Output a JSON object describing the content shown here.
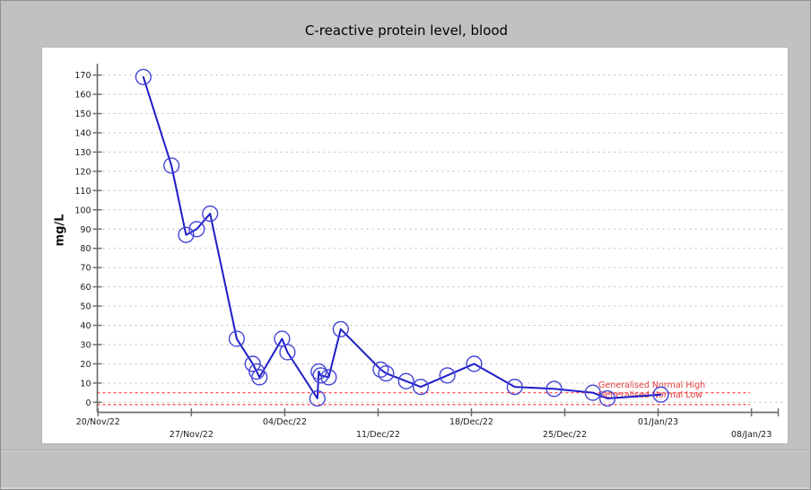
{
  "chart_data": {
    "type": "line",
    "title": "C-reactive protein level, blood",
    "ylabel": "mg/L",
    "ylim": [
      0,
      175
    ],
    "yticks": [
      0,
      10,
      20,
      30,
      40,
      50,
      60,
      70,
      80,
      90,
      100,
      110,
      120,
      130,
      140,
      150,
      160,
      170
    ],
    "grid": true,
    "legend_position": "none",
    "x_tick_labels": [
      "20/Nov/22",
      "27/Nov/22",
      "04/Dec/22",
      "11/Dec/22",
      "18/Dec/22",
      "25/Dec/22",
      "01/Jan/23",
      "08/Jan/23"
    ],
    "x_tick_day_offsets": [
      0,
      7,
      14,
      21,
      28,
      35,
      42,
      49
    ],
    "xlim_days": [
      0,
      51
    ],
    "series": [
      {
        "name": "C-reactive protein",
        "marker": "circle",
        "points": [
          {
            "date": "23/Nov/22",
            "day": 3.4,
            "value": 169
          },
          {
            "date": "25/Nov/22",
            "day": 5.5,
            "value": 123
          },
          {
            "date": "26/Nov/22",
            "day": 6.6,
            "value": 87
          },
          {
            "date": "27/Nov/22",
            "day": 7.4,
            "value": 90
          },
          {
            "date": "28/Nov/22",
            "day": 8.4,
            "value": 98
          },
          {
            "date": "30/Nov/22",
            "day": 10.4,
            "value": 33
          },
          {
            "date": "01/Dec/22",
            "day": 11.6,
            "value": 20
          },
          {
            "date": "01/Dec/22",
            "day": 11.9,
            "value": 16
          },
          {
            "date": "02/Dec/22",
            "day": 12.1,
            "value": 13
          },
          {
            "date": "03/Dec/22",
            "day": 13.8,
            "value": 33
          },
          {
            "date": "04/Dec/22",
            "day": 14.2,
            "value": 26
          },
          {
            "date": "06/Dec/22",
            "day": 16.45,
            "value": 2
          },
          {
            "date": "06/Dec/22",
            "day": 16.55,
            "value": 16
          },
          {
            "date": "06/Dec/22",
            "day": 16.7,
            "value": 14
          },
          {
            "date": "07/Dec/22",
            "day": 17.3,
            "value": 13
          },
          {
            "date": "08/Dec/22",
            "day": 18.2,
            "value": 38
          },
          {
            "date": "11/Dec/22",
            "day": 21.2,
            "value": 17
          },
          {
            "date": "11/Dec/22",
            "day": 21.6,
            "value": 15
          },
          {
            "date": "13/Dec/22",
            "day": 23.1,
            "value": 11
          },
          {
            "date": "14/Dec/22",
            "day": 24.2,
            "value": 8
          },
          {
            "date": "16/Dec/22",
            "day": 26.2,
            "value": 14
          },
          {
            "date": "18/Dec/22",
            "day": 28.2,
            "value": 20
          },
          {
            "date": "21/Dec/22",
            "day": 31.25,
            "value": 8
          },
          {
            "date": "24/Dec/22",
            "day": 34.2,
            "value": 7
          },
          {
            "date": "27/Dec/22",
            "day": 37.1,
            "value": 5
          },
          {
            "date": "28/Dec/22",
            "day": 38.2,
            "value": 2
          },
          {
            "date": "01/Jan/23",
            "day": 42.2,
            "value": 4
          }
        ]
      }
    ],
    "reference_lines": [
      {
        "label": "Generalised Normal High",
        "value": 5
      },
      {
        "label": "Generalised Normal Low",
        "value": 0
      }
    ],
    "colors": {
      "series_line": "#1d1dc8",
      "marker_outline": "#4343d6",
      "reference_line": "#ff5050",
      "reference_label": "#e03a3a",
      "axis": "#6e6e6e",
      "gridline": "#bdbdbd",
      "tick_label": "#1a1a1a",
      "panel_background": "#ffffff",
      "window_background": "#c1c1c1"
    }
  }
}
